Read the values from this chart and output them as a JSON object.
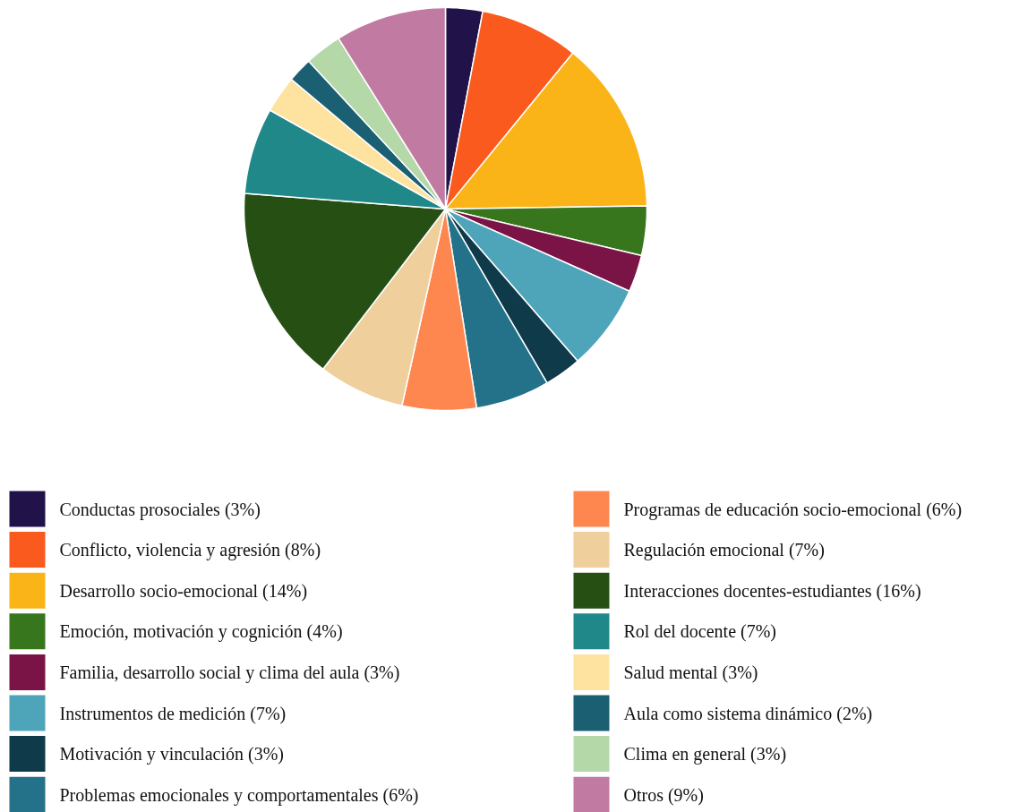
{
  "chart_data": {
    "type": "pie",
    "categories": [
      "Conductas prosociales (3%)",
      "Conflicto, violencia y agresión (8%)",
      "Desarrollo socio-emocional (14%)",
      "Emoción, motivación y cognición (4%)",
      "Familia, desarrollo social y clima del aula (3%)",
      "Instrumentos de medición (7%)",
      "Motivación y vinculación (3%)",
      "Problemas emocionales y comportamentales (6%)",
      "Programas de educación socio-emocional (6%)",
      "Regulación emocional (7%)",
      "Interacciones docentes-estudiantes (16%)",
      "Rol del docente (7%)",
      "Salud mental (3%)",
      "Aula como sistema dinámico (2%)",
      "Clima en general (3%)",
      "Otros (9%)"
    ],
    "values": [
      3,
      8,
      14,
      4,
      3,
      7,
      3,
      6,
      6,
      7,
      16,
      7,
      3,
      2,
      3,
      9
    ],
    "colors": [
      "#21134a",
      "#fa5a1e",
      "#fbb417",
      "#38761d",
      "#7a1446",
      "#4ea5ba",
      "#0f3a4a",
      "#23728a",
      "#fe8750",
      "#efcf9c",
      "#264f14",
      "#21888a",
      "#fee3a0",
      "#1b5f72",
      "#b5d8a8",
      "#c17ba3"
    ],
    "legend": "bottom"
  }
}
